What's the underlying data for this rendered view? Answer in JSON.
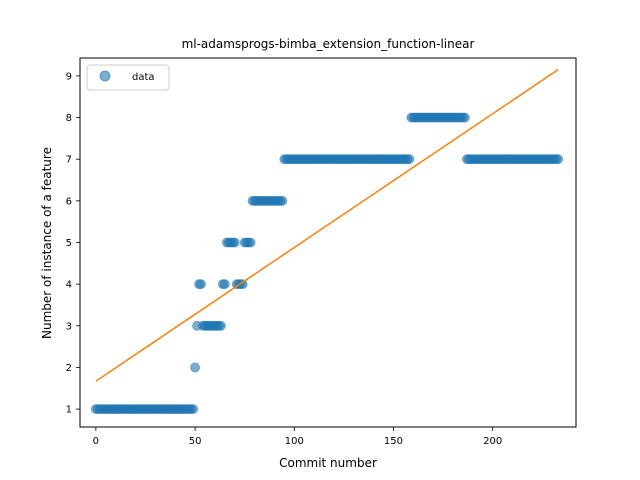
{
  "chart_data": {
    "type": "scatter",
    "title": "ml-adamsprogs-bimba_extension_function-linear",
    "xlabel": "Commit number",
    "ylabel": "Number of instance of a feature",
    "xlim": [
      -8,
      242
    ],
    "ylim": [
      0.57,
      9.43
    ],
    "xticks": [
      0,
      50,
      100,
      150,
      200
    ],
    "yticks": [
      1,
      2,
      3,
      4,
      5,
      6,
      7,
      8,
      9
    ],
    "legend": {
      "position": "top-left",
      "entries": [
        "data"
      ]
    },
    "colors": {
      "data": "#1f77b4",
      "fit": "#ff7f0e"
    },
    "series": [
      {
        "name": "data",
        "kind": "scatter",
        "segments": [
          {
            "x_start": 0,
            "x_end": 49,
            "y": 1
          },
          {
            "x_start": 50,
            "x_end": 50,
            "y": 2
          },
          {
            "x_start": 51,
            "x_end": 51,
            "y": 3
          },
          {
            "x_start": 52,
            "x_end": 53,
            "y": 4
          },
          {
            "x_start": 54,
            "x_end": 63,
            "y": 3
          },
          {
            "x_start": 64,
            "x_end": 65,
            "y": 4
          },
          {
            "x_start": 66,
            "x_end": 70,
            "y": 5
          },
          {
            "x_start": 71,
            "x_end": 74,
            "y": 4
          },
          {
            "x_start": 75,
            "x_end": 78,
            "y": 5
          },
          {
            "x_start": 79,
            "x_end": 94,
            "y": 6
          },
          {
            "x_start": 95,
            "x_end": 158,
            "y": 7
          },
          {
            "x_start": 159,
            "x_end": 186,
            "y": 8
          },
          {
            "x_start": 187,
            "x_end": 233,
            "y": 7
          }
        ]
      },
      {
        "kind": "line",
        "x": [
          0,
          233
        ],
        "y": [
          1.67,
          9.15
        ]
      }
    ]
  }
}
